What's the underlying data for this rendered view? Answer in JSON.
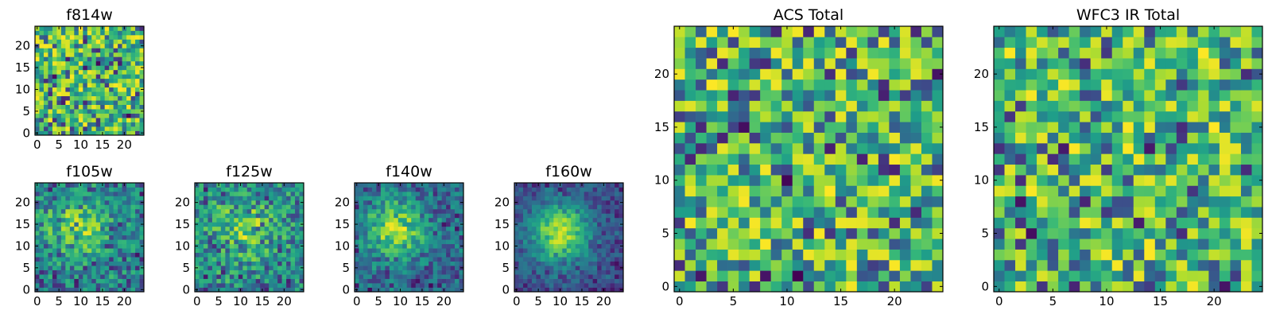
{
  "chart_data": [
    {
      "type": "heatmap",
      "title": "f814w",
      "colormap": "viridis",
      "grid_size": 25,
      "seed": 11,
      "mode": "noise",
      "xlim": [
        -0.5,
        24.5
      ],
      "ylim": [
        -0.5,
        24.5
      ],
      "xticks": [
        "0",
        "5",
        "10",
        "15",
        "20"
      ],
      "yticks": [
        "0",
        "5",
        "10",
        "15",
        "20"
      ],
      "xtick_values": [
        0,
        5,
        10,
        15,
        20
      ],
      "ytick_values": [
        0,
        5,
        10,
        15,
        20
      ]
    },
    {
      "type": "heatmap",
      "title": "f105w",
      "colormap": "viridis",
      "grid_size": 25,
      "seed": 23,
      "mode": "blob",
      "blob_center": [
        9,
        14
      ],
      "blob_strength": 0.35,
      "xlim": [
        -0.5,
        24.5
      ],
      "ylim": [
        -0.5,
        24.5
      ],
      "xticks": [
        "0",
        "5",
        "10",
        "15",
        "20"
      ],
      "yticks": [
        "0",
        "5",
        "10",
        "15",
        "20"
      ],
      "xtick_values": [
        0,
        5,
        10,
        15,
        20
      ],
      "ytick_values": [
        0,
        5,
        10,
        15,
        20
      ]
    },
    {
      "type": "heatmap",
      "title": "f125w",
      "colormap": "viridis",
      "grid_size": 25,
      "seed": 37,
      "mode": "blob",
      "blob_center": [
        11,
        14
      ],
      "blob_strength": 0.3,
      "xlim": [
        -0.5,
        24.5
      ],
      "ylim": [
        -0.5,
        24.5
      ],
      "xticks": [
        "0",
        "5",
        "10",
        "15",
        "20"
      ],
      "yticks": [
        "0",
        "5",
        "10",
        "15",
        "20"
      ],
      "xtick_values": [
        0,
        5,
        10,
        15,
        20
      ],
      "ytick_values": [
        0,
        5,
        10,
        15,
        20
      ]
    },
    {
      "type": "heatmap",
      "title": "f140w",
      "colormap": "viridis",
      "grid_size": 25,
      "seed": 41,
      "mode": "blob",
      "blob_center": [
        9,
        14
      ],
      "blob_strength": 0.5,
      "xlim": [
        -0.5,
        24.5
      ],
      "ylim": [
        -0.5,
        24.5
      ],
      "xticks": [
        "0",
        "5",
        "10",
        "15",
        "20"
      ],
      "yticks": [
        "0",
        "5",
        "10",
        "15",
        "20"
      ],
      "xtick_values": [
        0,
        5,
        10,
        15,
        20
      ],
      "ytick_values": [
        0,
        5,
        10,
        15,
        20
      ]
    },
    {
      "type": "heatmap",
      "title": "f160w",
      "colormap": "viridis",
      "grid_size": 25,
      "seed": 53,
      "mode": "blob",
      "blob_center": [
        10,
        13
      ],
      "blob_strength": 0.65,
      "xlim": [
        -0.5,
        24.5
      ],
      "ylim": [
        -0.5,
        24.5
      ],
      "xticks": [
        "0",
        "5",
        "10",
        "15",
        "20"
      ],
      "yticks": [
        "0",
        "5",
        "10",
        "15",
        "20"
      ],
      "xtick_values": [
        0,
        5,
        10,
        15,
        20
      ],
      "ytick_values": [
        0,
        5,
        10,
        15,
        20
      ]
    },
    {
      "type": "heatmap",
      "title": "ACS Total",
      "colormap": "viridis",
      "grid_size": 25,
      "seed": 67,
      "mode": "noise",
      "xlim": [
        -0.5,
        24.5
      ],
      "ylim": [
        -0.5,
        24.5
      ],
      "xticks": [
        "0",
        "5",
        "10",
        "15",
        "20"
      ],
      "yticks": [
        "0",
        "5",
        "10",
        "15",
        "20"
      ],
      "xtick_values": [
        0,
        5,
        10,
        15,
        20
      ],
      "ytick_values": [
        0,
        5,
        10,
        15,
        20
      ]
    },
    {
      "type": "heatmap",
      "title": "WFC3 IR Total",
      "colormap": "viridis",
      "grid_size": 25,
      "seed": 79,
      "mode": "noise",
      "xlim": [
        -0.5,
        24.5
      ],
      "ylim": [
        -0.5,
        24.5
      ],
      "xticks": [
        "0",
        "5",
        "10",
        "15",
        "20"
      ],
      "yticks": [
        "0",
        "5",
        "10",
        "15",
        "20"
      ],
      "xtick_values": [
        0,
        5,
        10,
        15,
        20
      ],
      "ytick_values": [
        0,
        5,
        10,
        15,
        20
      ]
    }
  ]
}
